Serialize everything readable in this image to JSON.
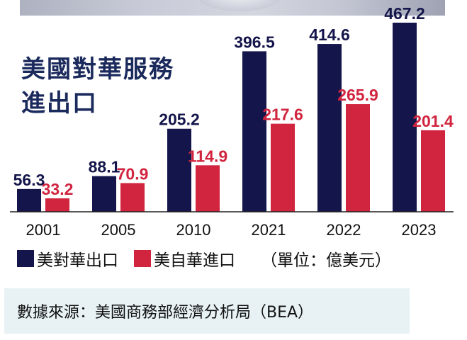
{
  "chart_data": {
    "type": "bar",
    "title": [
      "美國對華服務",
      "進出口"
    ],
    "categories": [
      "2001",
      "2005",
      "2010",
      "2021",
      "2022",
      "2023"
    ],
    "series": [
      {
        "name": "美對華出口",
        "color": "#14154a",
        "values": [
          56.3,
          88.1,
          205.2,
          396.5,
          414.6,
          467.2
        ]
      },
      {
        "name": "美自華進口",
        "color": "#d1243e",
        "values": [
          33.2,
          70.9,
          114.9,
          217.6,
          265.9,
          201.4
        ]
      }
    ],
    "value_labels": [
      [
        "56.3",
        "88.1",
        "205.2",
        "396.5",
        "414.6",
        "467.2"
      ],
      [
        "33.2",
        "70.9",
        "114.9",
        "217.6",
        "265.9",
        "201.4"
      ]
    ],
    "unit": "（單位：億美元）",
    "source": "數據來源：美國商務部經濟分析局（BEA）",
    "legend_position": "bottom-left",
    "grid": false
  }
}
